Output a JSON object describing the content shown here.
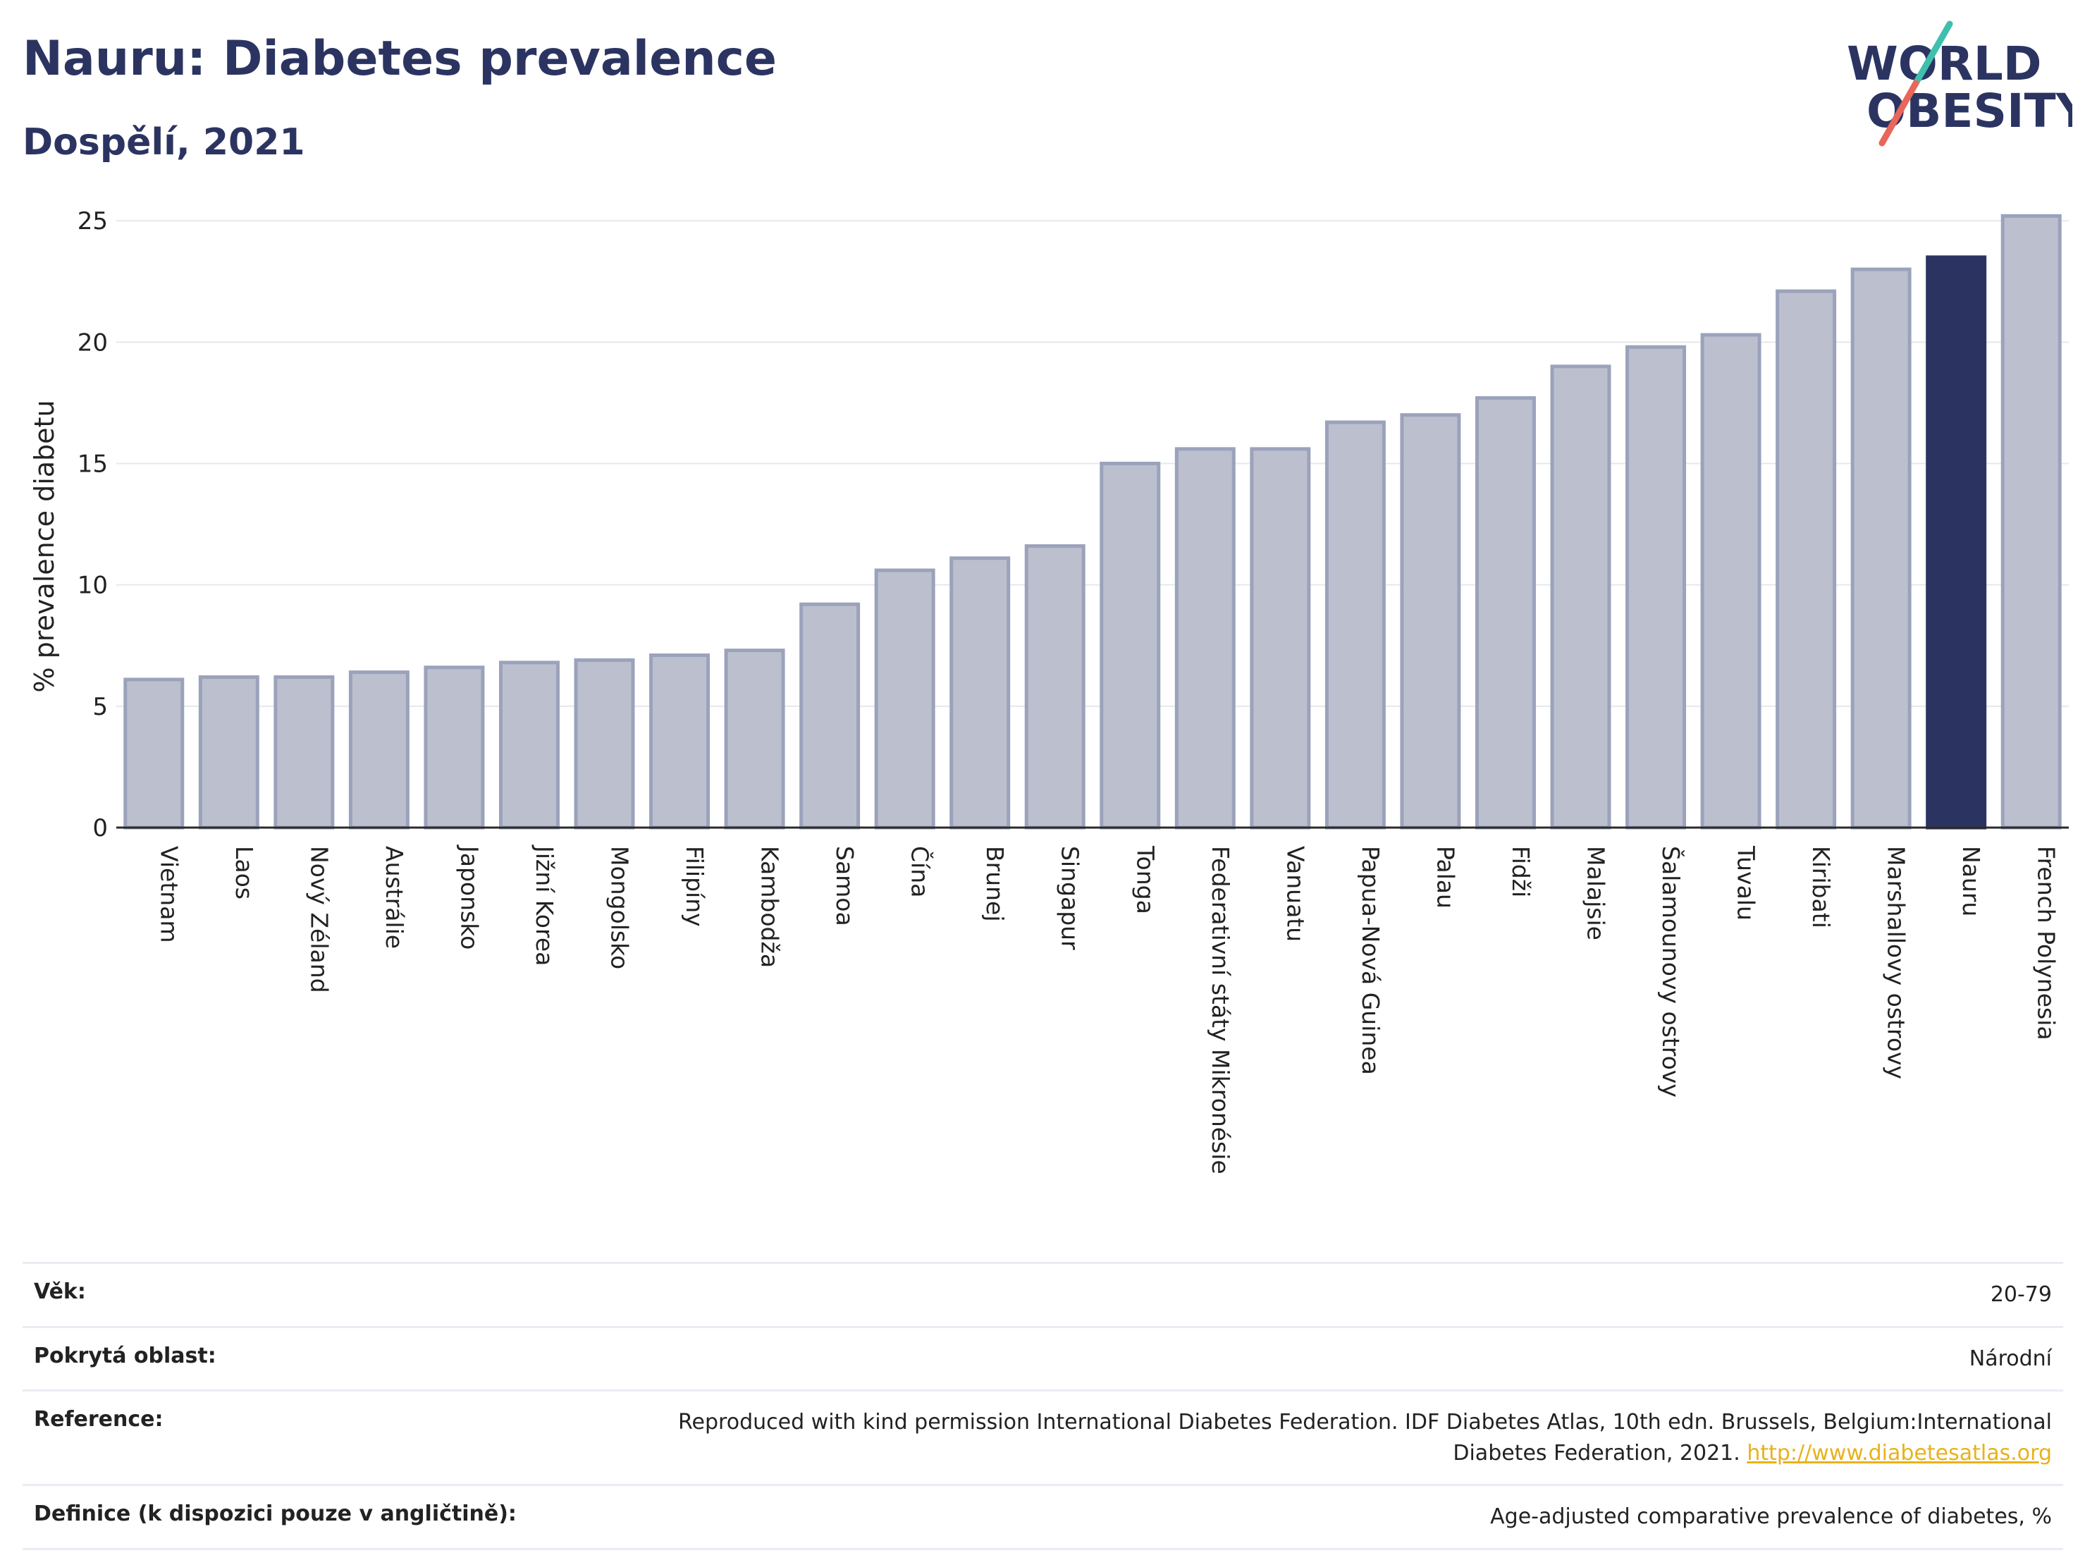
{
  "header": {
    "title": "Nauru: Diabetes prevalence",
    "subtitle": "Dospělí, 2021"
  },
  "logo": {
    "line1": "WORLD",
    "line2": "OBESITY",
    "colors": {
      "text": "#2b3461",
      "accent_teal": "#3fbfad",
      "accent_red": "#e8665a"
    }
  },
  "colors": {
    "bar_default": "#bcc0ce",
    "bar_default_stroke": "#9ba2bb",
    "bar_highlight": "#2b3461",
    "grid": "#e6e8ee",
    "axis": "#2b2b2b"
  },
  "chart_data": {
    "type": "bar",
    "ylabel": "% prevalence diabetu",
    "ylim": [
      0,
      25.5
    ],
    "yticks": [
      0,
      5,
      10,
      15,
      20,
      25
    ],
    "grid": true,
    "highlight": "Nauru",
    "categories": [
      "Vietnam",
      "Laos",
      "Nový Zéland",
      "Austrálie",
      "Japonsko",
      "Jižní Korea",
      "Mongolsko",
      "Filipíny",
      "Kambodža",
      "Samoa",
      "Čína",
      "Brunej",
      "Singapur",
      "Tonga",
      "Federativní státy Mikronésie",
      "Vanuatu",
      "Papua-Nová Guinea",
      "Palau",
      "Fidži",
      "Malajsie",
      "Šalamounovy ostrovy",
      "Tuvalu",
      "Kiribati",
      "Marshallovy ostrovy",
      "Nauru",
      "French Polynesia"
    ],
    "values": [
      6.1,
      6.2,
      6.2,
      6.4,
      6.6,
      6.8,
      6.9,
      7.1,
      7.3,
      9.2,
      10.6,
      11.1,
      11.6,
      15.0,
      15.6,
      15.6,
      16.7,
      17.0,
      17.7,
      19.0,
      19.8,
      20.3,
      22.1,
      23.0,
      23.5,
      25.2
    ]
  },
  "meta": {
    "age_label": "Věk:",
    "age_value": "20-79",
    "area_label": "Pokrytá oblast:",
    "area_value": "Národní",
    "reference_label": "Reference:",
    "reference_text": "Reproduced with kind permission International Diabetes Federation.  IDF Diabetes Atlas, 10th edn. Brussels, Belgium:International Diabetes Federation, 2021.",
    "reference_link": "http://www.diabetesatlas.org",
    "definition_label": "Definice (k dispozici pouze v angličtině):",
    "definition_value": "Age-adjusted comparative prevalence of diabetes, %"
  }
}
